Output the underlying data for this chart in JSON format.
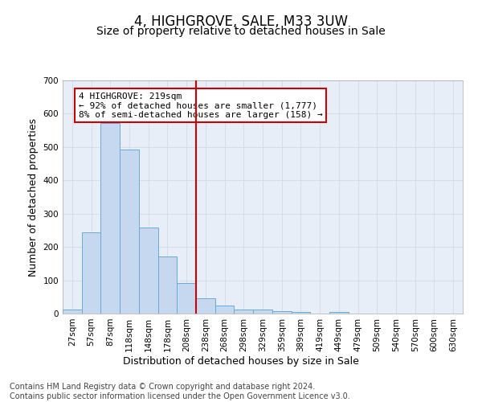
{
  "title": "4, HIGHGROVE, SALE, M33 3UW",
  "subtitle": "Size of property relative to detached houses in Sale",
  "xlabel": "Distribution of detached houses by size in Sale",
  "ylabel": "Number of detached properties",
  "bar_labels": [
    "27sqm",
    "57sqm",
    "87sqm",
    "118sqm",
    "148sqm",
    "178sqm",
    "208sqm",
    "238sqm",
    "268sqm",
    "298sqm",
    "329sqm",
    "359sqm",
    "389sqm",
    "419sqm",
    "449sqm",
    "479sqm",
    "509sqm",
    "540sqm",
    "570sqm",
    "600sqm",
    "630sqm"
  ],
  "bar_values": [
    13,
    244,
    572,
    493,
    258,
    171,
    92,
    46,
    25,
    13,
    11,
    8,
    5,
    0,
    6,
    0,
    0,
    0,
    0,
    0,
    0
  ],
  "bar_color": "#c5d8f0",
  "bar_edge_color": "#6aaad4",
  "vline_x": 7.5,
  "annotation_text": "4 HIGHGROVE: 219sqm\n← 92% of detached houses are smaller (1,777)\n8% of semi-detached houses are larger (158) →",
  "vline_color": "#cc0000",
  "grid_color": "#d0dbe8",
  "bg_color": "#e8eef8",
  "footer": "Contains HM Land Registry data © Crown copyright and database right 2024.\nContains public sector information licensed under the Open Government Licence v3.0.",
  "ylim": [
    0,
    700
  ],
  "title_fontsize": 12,
  "subtitle_fontsize": 10,
  "axis_label_fontsize": 9,
  "tick_fontsize": 7.5,
  "footer_fontsize": 7
}
